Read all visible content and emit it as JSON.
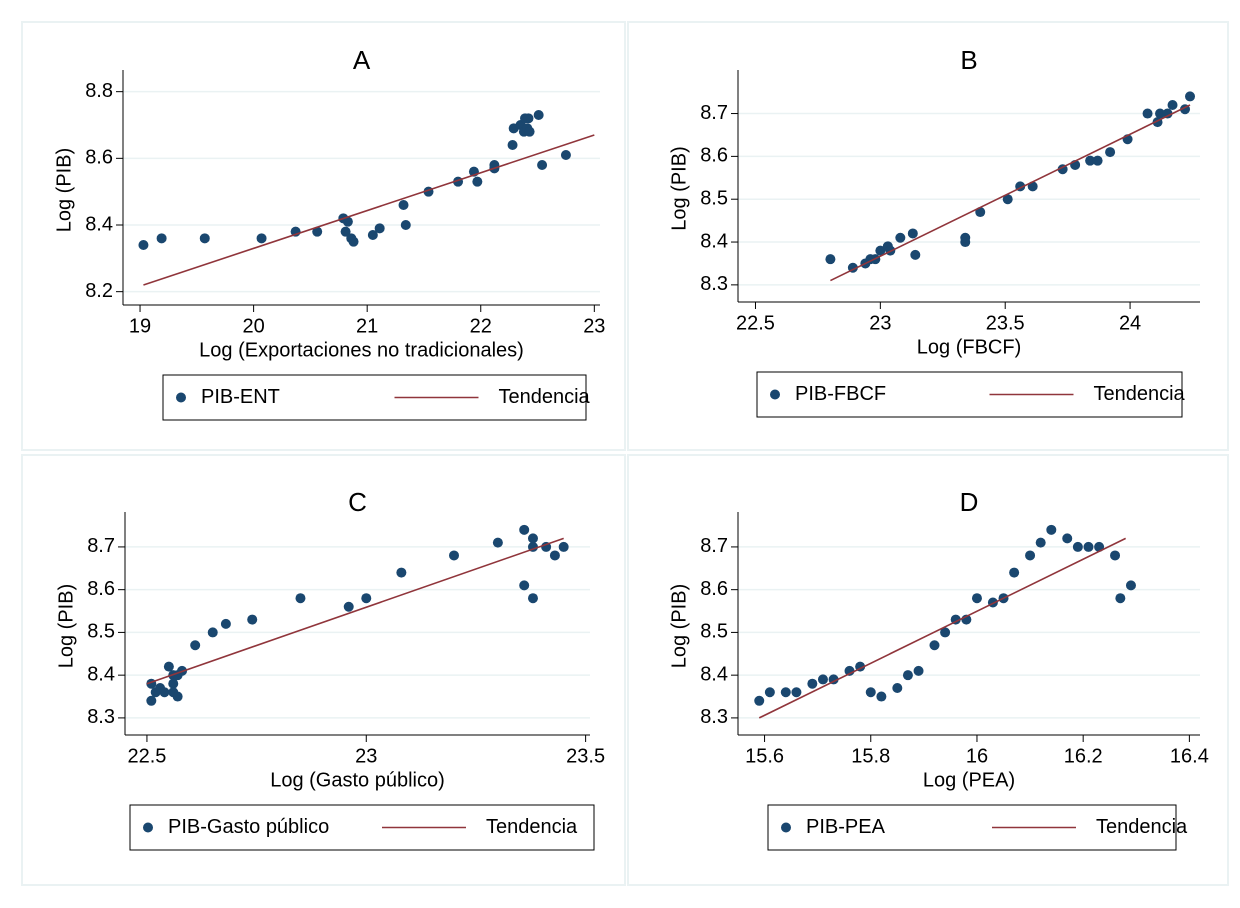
{
  "chart_data": [
    {
      "type": "scatter",
      "title": "A",
      "xlabel": "Log (Exportaciones no tradicionales)",
      "ylabel": "Log (PIB)",
      "xlim": [
        18.85,
        23.05
      ],
      "ylim": [
        8.16,
        8.85
      ],
      "xticks": [
        19,
        20,
        21,
        22,
        23
      ],
      "yticks": [
        8.2,
        8.4,
        8.6,
        8.8
      ],
      "grid": true,
      "legend": "bottom",
      "series": [
        {
          "name": "PIB-ENT",
          "mode": "markers",
          "color": "#1a476f",
          "x": [
            19.03,
            19.19,
            19.57,
            20.07,
            20.37,
            20.56,
            20.79,
            20.83,
            20.81,
            20.86,
            20.88,
            21.05,
            21.11,
            21.32,
            21.34,
            21.54,
            21.8,
            21.94,
            21.97,
            22.12,
            22.12,
            22.28,
            22.29,
            22.35,
            22.39,
            22.42,
            22.38,
            22.41,
            22.51,
            22.54,
            22.75,
            22.43
          ],
          "values": [
            8.34,
            8.36,
            8.36,
            8.36,
            8.38,
            8.38,
            8.42,
            8.41,
            8.38,
            8.36,
            8.35,
            8.37,
            8.39,
            8.46,
            8.4,
            8.5,
            8.53,
            8.56,
            8.53,
            8.58,
            8.57,
            8.64,
            8.69,
            8.7,
            8.72,
            8.72,
            8.68,
            8.69,
            8.73,
            8.58,
            8.61,
            8.68
          ]
        },
        {
          "name": "Tendencia",
          "mode": "line",
          "color": "#90353b",
          "x": [
            19.03,
            23.0
          ],
          "values": [
            8.22,
            8.67
          ]
        }
      ]
    },
    {
      "type": "scatter",
      "title": "B",
      "xlabel": "Log (FBCF)",
      "ylabel": "Log (PIB)",
      "xlim": [
        22.43,
        24.28
      ],
      "ylim": [
        8.26,
        8.79
      ],
      "xticks": [
        22.5,
        23,
        23.5,
        24
      ],
      "yticks": [
        8.3,
        8.4,
        8.5,
        8.6,
        8.7
      ],
      "grid": true,
      "legend": "bottom",
      "series": [
        {
          "name": "PIB-FBCF",
          "mode": "markers",
          "color": "#1a476f",
          "x": [
            22.8,
            22.89,
            22.94,
            22.96,
            22.98,
            23.0,
            23.03,
            23.04,
            23.08,
            23.13,
            23.14,
            23.34,
            23.34,
            23.4,
            23.51,
            23.56,
            23.61,
            23.73,
            23.78,
            23.84,
            23.87,
            23.92,
            23.99,
            24.07,
            24.11,
            24.12,
            24.15,
            24.17,
            24.22,
            24.24
          ],
          "values": [
            8.36,
            8.34,
            8.35,
            8.36,
            8.36,
            8.38,
            8.39,
            8.38,
            8.41,
            8.42,
            8.37,
            8.4,
            8.41,
            8.47,
            8.5,
            8.53,
            8.53,
            8.57,
            8.58,
            8.59,
            8.59,
            8.61,
            8.64,
            8.7,
            8.68,
            8.7,
            8.7,
            8.72,
            8.71,
            8.74
          ]
        },
        {
          "name": "Tendencia",
          "mode": "line",
          "color": "#90353b",
          "x": [
            22.8,
            24.24
          ],
          "values": [
            8.31,
            8.72
          ]
        }
      ]
    },
    {
      "type": "scatter",
      "title": "C",
      "xlabel": "Log (Gasto público)",
      "ylabel": "Log (PIB)",
      "xlim": [
        22.45,
        23.51
      ],
      "ylim": [
        8.26,
        8.77
      ],
      "xticks": [
        22.5,
        23,
        23.5
      ],
      "yticks": [
        8.3,
        8.4,
        8.5,
        8.6,
        8.7
      ],
      "grid": true,
      "legend": "bottom",
      "series": [
        {
          "name": "PIB-Gasto público",
          "mode": "markers",
          "color": "#1a476f",
          "x": [
            22.51,
            22.51,
            22.52,
            22.53,
            22.54,
            22.55,
            22.56,
            22.56,
            22.56,
            22.57,
            22.57,
            22.58,
            22.61,
            22.65,
            22.68,
            22.74,
            22.85,
            22.96,
            23.0,
            23.08,
            23.2,
            23.3,
            23.36,
            23.38,
            23.38,
            23.36,
            23.38,
            23.41,
            23.43,
            23.45
          ],
          "values": [
            8.38,
            8.34,
            8.36,
            8.37,
            8.36,
            8.42,
            8.4,
            8.38,
            8.36,
            8.35,
            8.4,
            8.41,
            8.47,
            8.5,
            8.52,
            8.53,
            8.58,
            8.56,
            8.58,
            8.64,
            8.68,
            8.71,
            8.74,
            8.72,
            8.7,
            8.61,
            8.58,
            8.7,
            8.68,
            8.7
          ]
        },
        {
          "name": "Tendencia",
          "mode": "line",
          "color": "#90353b",
          "x": [
            22.5,
            23.45
          ],
          "values": [
            8.38,
            8.72
          ]
        }
      ]
    },
    {
      "type": "scatter",
      "title": "D",
      "xlabel": "Log (PEA)",
      "ylabel": "Log (PIB)",
      "xlim": [
        15.55,
        16.42
      ],
      "ylim": [
        8.26,
        8.77
      ],
      "xticks": [
        15.6,
        15.8,
        16,
        16.2,
        16.4
      ],
      "yticks": [
        8.3,
        8.4,
        8.5,
        8.6,
        8.7
      ],
      "grid": true,
      "legend": "bottom",
      "series": [
        {
          "name": "PIB-PEA",
          "mode": "markers",
          "color": "#1a476f",
          "x": [
            15.59,
            15.61,
            15.64,
            15.66,
            15.69,
            15.71,
            15.73,
            15.76,
            15.78,
            15.8,
            15.82,
            15.85,
            15.87,
            15.89,
            15.92,
            15.94,
            15.96,
            15.98,
            16.0,
            16.03,
            16.05,
            16.07,
            16.1,
            16.12,
            16.14,
            16.17,
            16.19,
            16.21,
            16.23,
            16.26,
            16.27,
            16.29
          ],
          "values": [
            8.34,
            8.36,
            8.36,
            8.36,
            8.38,
            8.39,
            8.39,
            8.41,
            8.42,
            8.36,
            8.35,
            8.37,
            8.4,
            8.41,
            8.47,
            8.5,
            8.53,
            8.53,
            8.58,
            8.57,
            8.58,
            8.64,
            8.68,
            8.71,
            8.74,
            8.72,
            8.7,
            8.7,
            8.7,
            8.68,
            8.58,
            8.61
          ]
        },
        {
          "name": "Tendencia",
          "mode": "line",
          "color": "#90353b",
          "x": [
            15.59,
            16.28
          ],
          "values": [
            8.3,
            8.72
          ]
        }
      ]
    }
  ]
}
